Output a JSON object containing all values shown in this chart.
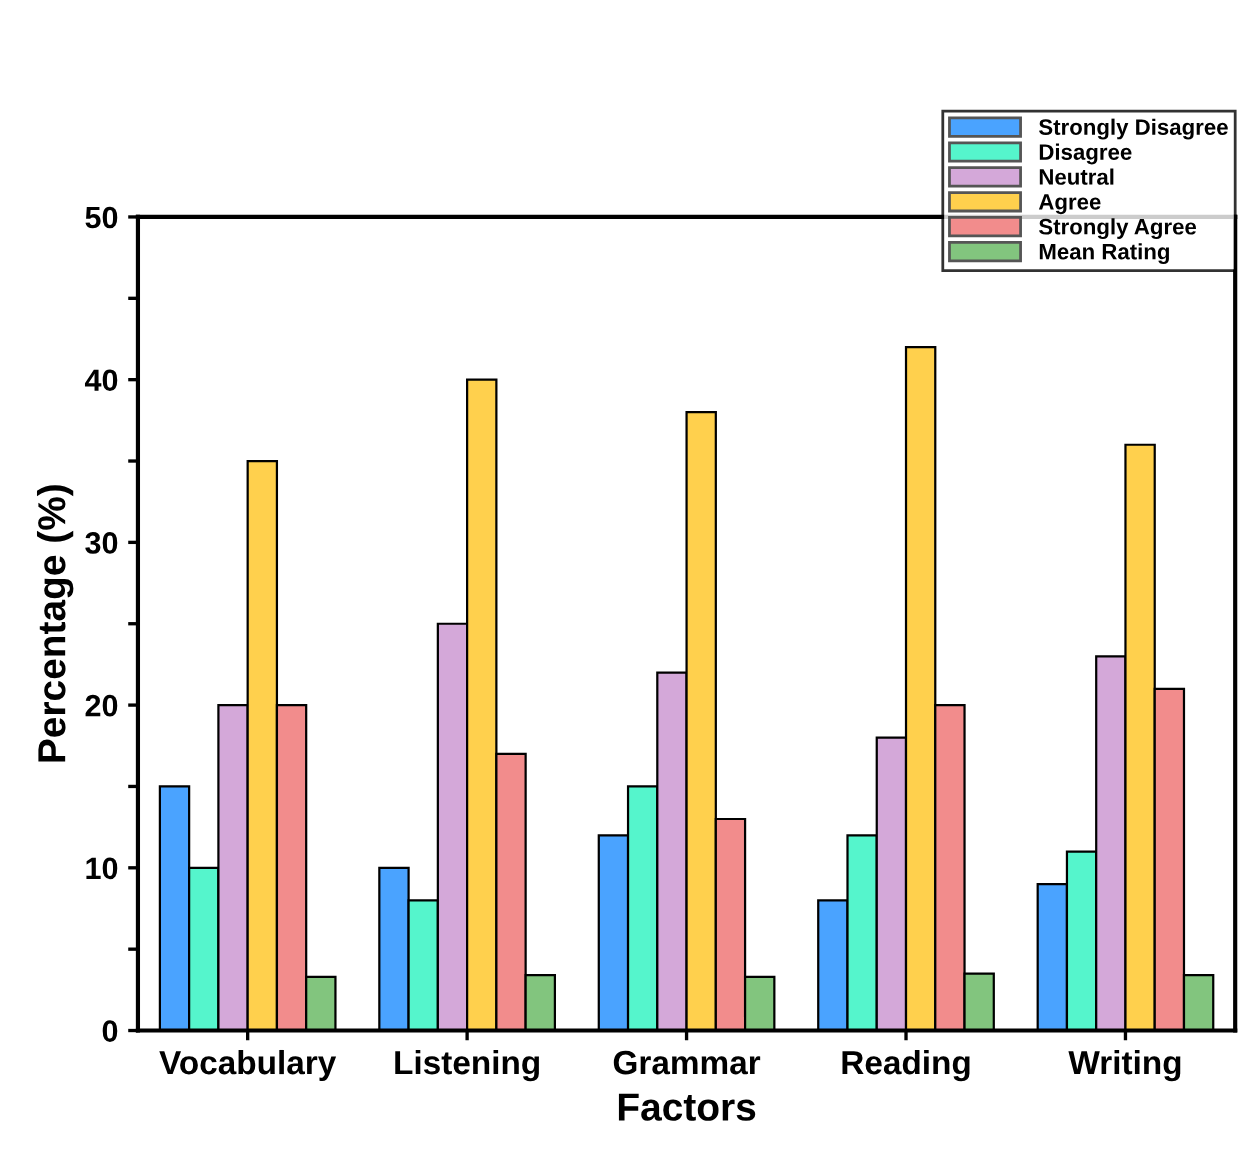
{
  "chart_data": {
    "type": "bar",
    "categories": [
      "Vocabulary",
      "Listening",
      "Grammar",
      "Reading",
      "Writing"
    ],
    "xlabel": "Factors",
    "ylabel": "Percentage (%)",
    "series": [
      {
        "name": "Strongly Disagree",
        "color": "#4aa3ff",
        "values": [
          15,
          10,
          12,
          8,
          9
        ]
      },
      {
        "name": "Disagree",
        "color": "#55f5cc",
        "values": [
          10,
          8,
          15,
          12,
          11
        ]
      },
      {
        "name": "Neutral",
        "color": "#d4a8d9",
        "values": [
          20,
          25,
          22,
          18,
          23
        ]
      },
      {
        "name": "Agree",
        "color": "#ffd04d",
        "values": [
          35,
          40,
          38,
          42,
          36
        ]
      },
      {
        "name": "Strongly Agree",
        "color": "#f28c8c",
        "values": [
          20,
          17,
          13,
          20,
          21
        ]
      },
      {
        "name": "Mean Rating",
        "color": "#82c57e",
        "values": [
          3.3,
          3.4,
          3.3,
          3.5,
          3.4
        ]
      }
    ],
    "ylim": [
      0,
      50
    ],
    "yticks": [
      0,
      {
        "value": 5,
        "label": null
      },
      10,
      {
        "value": 15,
        "label": null
      },
      20,
      {
        "value": 25,
        "label": null
      },
      30,
      {
        "value": 35,
        "label": null
      },
      40,
      {
        "value": 45,
        "label": null
      },
      50
    ],
    "grid": false,
    "legend": "top right"
  }
}
